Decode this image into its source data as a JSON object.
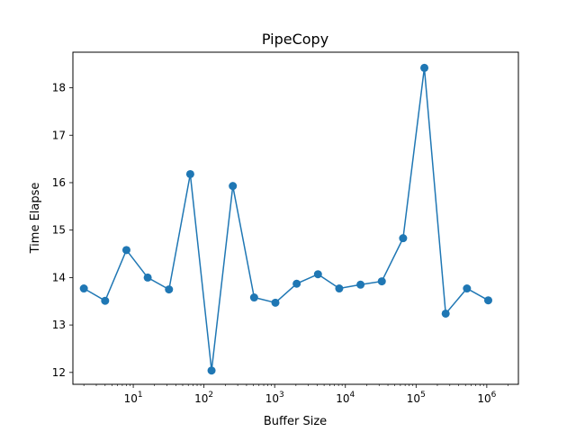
{
  "chart_data": {
    "type": "line",
    "title": "PipeCopy",
    "xlabel": "Buffer Size",
    "ylabel": "Time Elapse",
    "x_scale": "log",
    "xlim": [
      1.4,
      2800000
    ],
    "ylim": [
      11.75,
      18.75
    ],
    "grid": false,
    "legend": "none",
    "color": "#1f77b4",
    "x_ticks": [
      {
        "base": "10",
        "exp": "1",
        "value": 10
      },
      {
        "base": "10",
        "exp": "2",
        "value": 100
      },
      {
        "base": "10",
        "exp": "3",
        "value": 1000
      },
      {
        "base": "10",
        "exp": "4",
        "value": 10000
      },
      {
        "base": "10",
        "exp": "5",
        "value": 100000
      },
      {
        "base": "10",
        "exp": "6",
        "value": 1000000
      }
    ],
    "y_ticks": [
      "12",
      "13",
      "14",
      "15",
      "16",
      "17",
      "18"
    ],
    "series": [
      {
        "x": [
          2,
          4,
          8,
          16,
          32,
          64,
          128,
          256,
          512,
          1024,
          2048,
          4096,
          8192,
          16384,
          32768,
          65536,
          131072,
          262144,
          524288,
          1048576
        ],
        "y": [
          13.77,
          13.51,
          14.58,
          14.0,
          13.75,
          16.18,
          12.04,
          15.93,
          13.58,
          13.47,
          13.87,
          14.07,
          13.77,
          13.85,
          13.92,
          14.83,
          18.42,
          13.24,
          13.77,
          13.52
        ]
      }
    ]
  }
}
